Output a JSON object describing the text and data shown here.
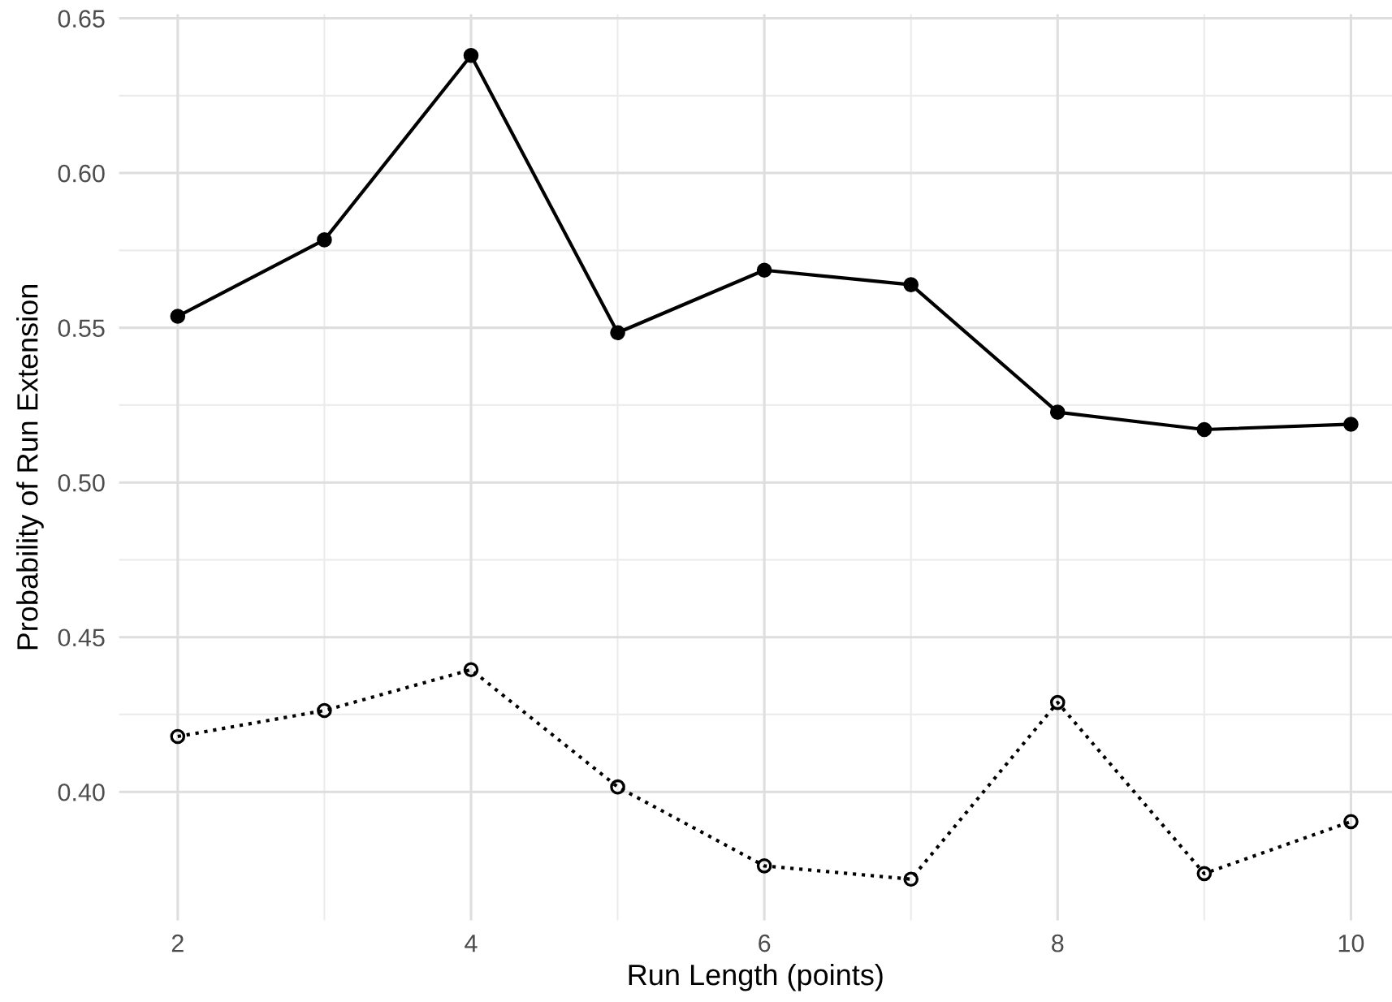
{
  "chart_data": {
    "type": "line",
    "xlabel": "Run Length (points)",
    "ylabel": "Probability of Run Extension",
    "x": [
      2,
      3,
      4,
      5,
      6,
      7,
      8,
      9,
      10
    ],
    "series": [
      {
        "color": "#000000",
        "line_style": "solid",
        "marker": "circle",
        "values": [
          0.5537,
          0.5784,
          0.638,
          0.5484,
          0.5686,
          0.5639,
          0.5227,
          0.5171,
          0.5188
        ]
      },
      {
        "color": "#000000",
        "line_style": "dotted",
        "marker": "circle",
        "values": [
          0.4179,
          0.4263,
          0.4395,
          0.4016,
          0.3761,
          0.3718,
          0.4289,
          0.3736,
          0.3904
        ]
      }
    ],
    "xlim": [
      1.6,
      10.28
    ],
    "ylim": [
      0.3585,
      0.6513
    ],
    "xticks": [
      2,
      4,
      6,
      8,
      10
    ],
    "yticks": [
      {
        "value": 0.4,
        "label": "0.40"
      },
      {
        "value": 0.45,
        "label": "0.45"
      },
      {
        "value": 0.5,
        "label": "0.50"
      },
      {
        "value": 0.55,
        "label": "0.55"
      },
      {
        "value": 0.6,
        "label": "0.60"
      },
      {
        "value": 0.65,
        "label": "0.65"
      }
    ],
    "grid": true,
    "legend": false
  }
}
